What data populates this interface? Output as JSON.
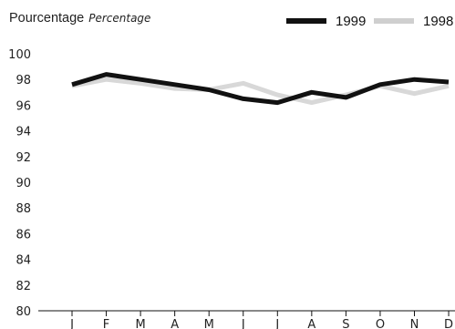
{
  "chart_data": {
    "type": "line",
    "title": "",
    "ylabel_fr": "Pourcentage",
    "ylabel_en": "Percentage",
    "xlabel": "",
    "categories": [
      "J",
      "F",
      "M",
      "A",
      "M",
      "J",
      "J",
      "A",
      "S",
      "O",
      "N",
      "D"
    ],
    "ylim": [
      80,
      100
    ],
    "yticks": [
      80,
      82,
      84,
      86,
      88,
      90,
      92,
      94,
      96,
      98,
      100
    ],
    "grid": false,
    "legend_position": "top-right",
    "series": [
      {
        "name": "1999",
        "color": "#111111",
        "values": [
          97.6,
          98.4,
          98.0,
          97.6,
          97.2,
          96.5,
          96.2,
          97.0,
          96.6,
          97.6,
          98.0,
          97.8
        ]
      },
      {
        "name": "1998",
        "color": "#d8d8d8",
        "values": [
          97.5,
          98.0,
          97.7,
          97.3,
          97.2,
          97.7,
          96.8,
          96.2,
          96.8,
          97.5,
          96.9,
          97.5
        ]
      }
    ]
  }
}
